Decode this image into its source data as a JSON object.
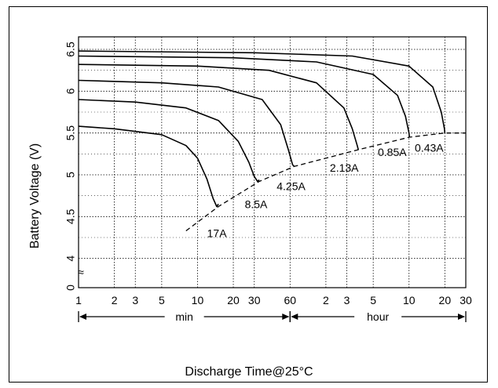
{
  "chart_data": {
    "type": "line",
    "title": "",
    "xlabel": "Discharge Time@25°C",
    "ylabel": "Battery Voltage (V)",
    "xscale": "log",
    "x_unit_values_minutes": true,
    "xlim_minutes": [
      1,
      1800
    ],
    "ylim": [
      3.65,
      6.65
    ],
    "y_axis_break": "≈",
    "y_ticks": [
      "0",
      "4",
      "4.5",
      "5",
      "5.5",
      "6",
      "6.5"
    ],
    "y_tick_values": [
      3.65,
      4,
      4.5,
      5,
      5.5,
      6,
      6.5
    ],
    "x_ticks": [
      {
        "label": "1",
        "minutes": 1
      },
      {
        "label": "2",
        "minutes": 2
      },
      {
        "label": "3",
        "minutes": 3
      },
      {
        "label": "5",
        "minutes": 5
      },
      {
        "label": "10",
        "minutes": 10
      },
      {
        "label": "20",
        "minutes": 20
      },
      {
        "label": "30",
        "minutes": 30
      },
      {
        "label": "60",
        "minutes": 60
      },
      {
        "label": "2",
        "minutes": 120
      },
      {
        "label": "3",
        "minutes": 180
      },
      {
        "label": "5",
        "minutes": 300
      },
      {
        "label": "10",
        "minutes": 600
      },
      {
        "label": "20",
        "minutes": 1200
      },
      {
        "label": "30",
        "minutes": 1800
      }
    ],
    "time_ranges": [
      {
        "label": "min",
        "from_minutes": 1,
        "to_minutes": 60
      },
      {
        "label": "hour",
        "from_minutes": 60,
        "to_minutes": 1800
      }
    ],
    "grid": true,
    "series": [
      {
        "name": "17A",
        "x": [
          1,
          2,
          5,
          8,
          10,
          12,
          13.5,
          14.5,
          15
        ],
        "y": [
          5.58,
          5.55,
          5.48,
          5.35,
          5.2,
          4.95,
          4.72,
          4.62,
          4.65
        ]
      },
      {
        "name": "8.5A",
        "x": [
          1,
          3,
          8,
          15,
          22,
          27,
          30,
          32,
          33
        ],
        "y": [
          5.9,
          5.87,
          5.8,
          5.65,
          5.4,
          5.15,
          4.98,
          4.92,
          4.94
        ]
      },
      {
        "name": "4.25A",
        "x": [
          1,
          5,
          15,
          35,
          50,
          58,
          63,
          65
        ],
        "y": [
          6.13,
          6.1,
          6.05,
          5.9,
          5.6,
          5.3,
          5.12,
          5.1
        ]
      },
      {
        "name": "2.13A",
        "x": [
          1,
          10,
          40,
          100,
          170,
          200,
          220,
          225
        ],
        "y": [
          6.32,
          6.3,
          6.25,
          6.1,
          5.8,
          5.55,
          5.35,
          5.3
        ]
      },
      {
        "name": "0.85A",
        "x": [
          1,
          20,
          100,
          300,
          480,
          560,
          600,
          605
        ],
        "y": [
          6.42,
          6.4,
          6.35,
          6.2,
          5.95,
          5.7,
          5.5,
          5.45
        ]
      },
      {
        "name": "0.43A",
        "x": [
          1,
          30,
          200,
          600,
          950,
          1120,
          1190,
          1200
        ],
        "y": [
          6.48,
          6.46,
          6.42,
          6.3,
          6.05,
          5.75,
          5.55,
          5.5
        ]
      }
    ],
    "cutoff_curve": {
      "x": [
        8,
        15,
        33,
        65,
        225,
        605,
        1200,
        1800
      ],
      "y": [
        4.33,
        4.62,
        4.92,
        5.1,
        5.3,
        5.45,
        5.5,
        5.5
      ]
    }
  }
}
